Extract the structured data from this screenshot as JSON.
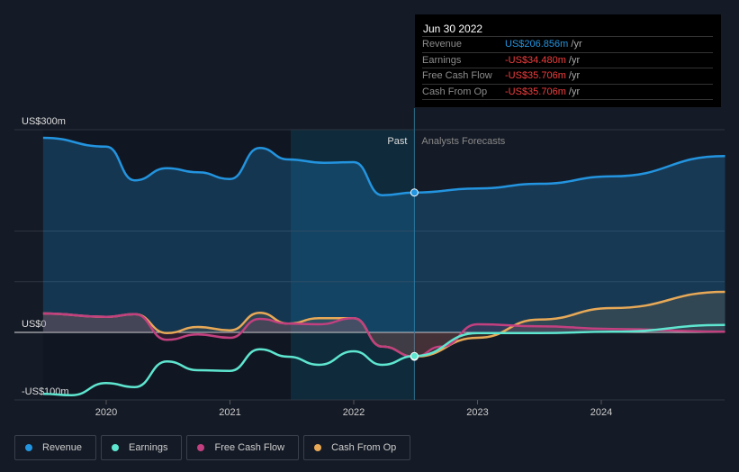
{
  "tooltip": {
    "date": "Jun 30 2022",
    "rows": [
      {
        "label": "Revenue",
        "value": "US$206.856m",
        "unit": " /yr",
        "color": "#2394df"
      },
      {
        "label": "Earnings",
        "value": "-US$34.480m",
        "unit": " /yr",
        "color": "#f23d3d"
      },
      {
        "label": "Free Cash Flow",
        "value": "-US$35.706m",
        "unit": " /yr",
        "color": "#f23d3d"
      },
      {
        "label": "Cash From Op",
        "value": "-US$35.706m",
        "unit": " /yr",
        "color": "#f23d3d"
      }
    ]
  },
  "chart_data": {
    "type": "line",
    "xlabel": "",
    "ylabel": "",
    "ylim": [
      -100,
      300
    ],
    "xlim": [
      2019.49,
      2025.0
    ],
    "y_ticks": [
      {
        "value": 300,
        "label": "US$300m"
      },
      {
        "value": 0,
        "label": "US$0"
      },
      {
        "value": -100,
        "label": "-US$100m"
      }
    ],
    "x_ticks": [
      {
        "value": 2020,
        "label": "2020"
      },
      {
        "value": 2021,
        "label": "2021"
      },
      {
        "value": 2022,
        "label": "2022"
      },
      {
        "value": 2023,
        "label": "2023"
      },
      {
        "value": 2024,
        "label": "2024"
      }
    ],
    "past_label": "Past",
    "forecast_label": "Analysts Forecasts",
    "divider_x": 2022.49,
    "series": [
      {
        "name": "Revenue",
        "color": "#2394df",
        "points": [
          [
            2019.49,
            288
          ],
          [
            2020,
            275
          ],
          [
            2020.23,
            225
          ],
          [
            2020.49,
            243
          ],
          [
            2020.74,
            237
          ],
          [
            2021,
            227
          ],
          [
            2021.24,
            273
          ],
          [
            2021.47,
            256
          ],
          [
            2021.76,
            251
          ],
          [
            2022,
            252
          ],
          [
            2022.23,
            203
          ],
          [
            2022.49,
            207
          ],
          [
            2023,
            213
          ],
          [
            2023.5,
            220
          ],
          [
            2024.09,
            231
          ],
          [
            2025,
            261
          ]
        ]
      },
      {
        "name": "Earnings",
        "color": "#5ee6d0",
        "points": [
          [
            2019.49,
            -91
          ],
          [
            2019.72,
            -93
          ],
          [
            2020,
            -75
          ],
          [
            2020.23,
            -81
          ],
          [
            2020.49,
            -43
          ],
          [
            2020.74,
            -56
          ],
          [
            2021,
            -57
          ],
          [
            2021.24,
            -25
          ],
          [
            2021.47,
            -36
          ],
          [
            2021.72,
            -48
          ],
          [
            2022,
            -28
          ],
          [
            2022.23,
            -48
          ],
          [
            2022.49,
            -35
          ],
          [
            2023,
            -1
          ],
          [
            2023.5,
            -1
          ],
          [
            2024.09,
            1
          ],
          [
            2025,
            11
          ]
        ]
      },
      {
        "name": "Free Cash Flow",
        "color": "#c2407f",
        "points": [
          [
            2019.49,
            28
          ],
          [
            2020,
            23
          ],
          [
            2020.23,
            27
          ],
          [
            2020.49,
            -11
          ],
          [
            2020.74,
            -3
          ],
          [
            2021,
            -8
          ],
          [
            2021.24,
            20
          ],
          [
            2021.47,
            13
          ],
          [
            2021.72,
            12
          ],
          [
            2022,
            21
          ],
          [
            2022.23,
            -21
          ],
          [
            2022.49,
            -36
          ],
          [
            2022.71,
            -21
          ],
          [
            2023,
            12
          ],
          [
            2023.5,
            9
          ],
          [
            2024.09,
            5
          ],
          [
            2025,
            1
          ]
        ]
      },
      {
        "name": "Cash From Op",
        "color": "#e8a957",
        "points": [
          [
            2019.49,
            28
          ],
          [
            2020,
            23
          ],
          [
            2020.23,
            27
          ],
          [
            2020.49,
            -1
          ],
          [
            2020.74,
            8
          ],
          [
            2021,
            3
          ],
          [
            2021.24,
            29
          ],
          [
            2021.47,
            13
          ],
          [
            2021.72,
            21
          ],
          [
            2022,
            21
          ],
          [
            2022.23,
            -21
          ],
          [
            2022.49,
            -36
          ],
          [
            2023,
            -8
          ],
          [
            2023.5,
            19
          ],
          [
            2024.09,
            36
          ],
          [
            2025,
            60
          ]
        ]
      }
    ]
  },
  "legend": [
    {
      "label": "Revenue",
      "color": "#2394df"
    },
    {
      "label": "Earnings",
      "color": "#5ee6d0"
    },
    {
      "label": "Free Cash Flow",
      "color": "#c2407f"
    },
    {
      "label": "Cash From Op",
      "color": "#e8a957"
    }
  ]
}
